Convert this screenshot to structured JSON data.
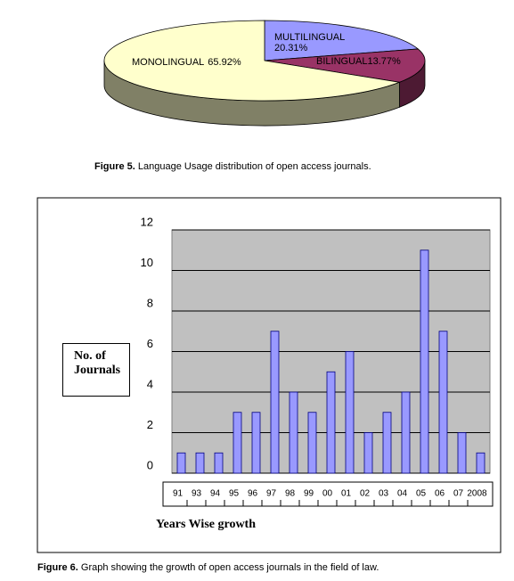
{
  "chart_data": [
    {
      "type": "pie3d",
      "categories": [
        "MULTILINGUAL",
        "BILINGUAL",
        "MONOLINGUAL"
      ],
      "values": [
        20.31,
        13.77,
        65.92
      ],
      "value_labels": [
        "20.31%",
        "13.77%",
        "65.92%"
      ],
      "colors": [
        "#9999ff",
        "#993366",
        "#ffffcc"
      ]
    },
    {
      "type": "bar",
      "categories": [
        "91",
        "93",
        "94",
        "95",
        "96",
        "97",
        "98",
        "99",
        "00",
        "01",
        "02",
        "03",
        "04",
        "05",
        "06",
        "07",
        "2008"
      ],
      "values": [
        1,
        1,
        1,
        3,
        3,
        7,
        4,
        3,
        5,
        6,
        2,
        3,
        4,
        11,
        7,
        2,
        1
      ],
      "color": "#9999ff",
      "ylim": [
        0,
        12
      ],
      "yticks": [
        0,
        2,
        4,
        6,
        8,
        10,
        12
      ],
      "grid": true,
      "ylabel": "No.  of Journals",
      "xlabel": "Years Wise growth"
    }
  ],
  "captions": [
    {
      "label": "Figure 5.",
      "text": "Language Usage distribution of open access journals."
    },
    {
      "label": "Figure 6.",
      "text": "Graph showing the growth of open access journals in the field of law."
    }
  ]
}
